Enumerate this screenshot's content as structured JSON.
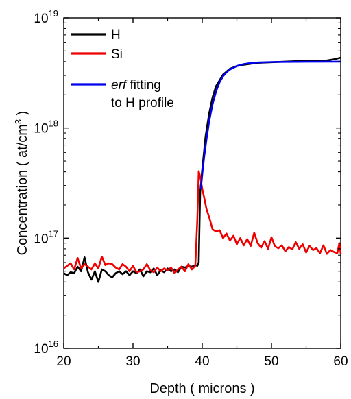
{
  "chart_data": {
    "type": "line",
    "xlabel": "Depth ( microns )",
    "ylabel": {
      "main": "Concentration ( at/cm",
      "sup": "3",
      "end": " )"
    },
    "xlim": [
      20,
      60
    ],
    "ylim": [
      1e+16,
      1e+19
    ],
    "yscale": "log",
    "x_ticks": [
      "20",
      "30",
      "40",
      "50",
      "60"
    ],
    "y_ticks": [
      {
        "base": "10",
        "exp": "16"
      },
      {
        "base": "10",
        "exp": "17"
      },
      {
        "base": "10",
        "exp": "18"
      },
      {
        "base": "10",
        "exp": "19"
      }
    ],
    "legend_position": "top-left",
    "grid": false,
    "legend_entries": [
      {
        "label": "H",
        "italic_prefix": "",
        "color": "#000000"
      },
      {
        "label": "Si",
        "italic_prefix": "",
        "color": "#ee0000"
      },
      {
        "label": " fitting",
        "italic_prefix": "erf",
        "line2": "to H profile",
        "color": "#0000ee"
      }
    ],
    "series": [
      {
        "name": "H",
        "color": "#000000",
        "x": [
          20,
          20.5,
          21,
          21.5,
          22,
          22.5,
          23,
          23.5,
          24,
          24.5,
          25,
          25.5,
          26,
          26.5,
          27,
          27.5,
          28,
          28.5,
          29,
          29.5,
          30,
          30.5,
          31,
          31.5,
          32,
          32.5,
          33,
          33.5,
          34,
          34.5,
          35,
          35.5,
          36,
          36.5,
          37,
          37.5,
          38,
          38.5,
          39,
          39.3,
          39.5,
          39.7,
          40,
          40.5,
          41,
          41.5,
          42,
          43,
          44,
          45,
          46,
          48,
          50,
          52,
          54,
          56,
          58,
          59,
          60
        ],
        "y": [
          4.8e+16,
          4.6e+16,
          4.9e+16,
          4.8e+16,
          5.5e+16,
          5e+16,
          6.7e+16,
          4.9e+16,
          4.2e+16,
          5e+16,
          4e+16,
          5.2e+16,
          5e+16,
          4.6e+16,
          4.4e+16,
          4.8e+16,
          5e+16,
          4.7e+16,
          5e+16,
          4.6e+16,
          5e+16,
          4.8e+16,
          5.2e+16,
          4.5e+16,
          5e+16,
          4.9e+16,
          5.3e+16,
          4.6e+16,
          5.1e+16,
          4.9e+16,
          5.3e+16,
          5e+16,
          5.2e+16,
          4.9e+16,
          5.5e+16,
          5.4e+16,
          5.6e+16,
          5.5e+16,
          5.7e+16,
          5.6e+16,
          6e+16,
          2.6e+17,
          4.2e+17,
          8.5e+17,
          1.35e+18,
          1.9e+18,
          2.4e+18,
          3.05e+18,
          3.45e+18,
          3.65e+18,
          3.75e+18,
          3.9e+18,
          3.95e+18,
          4e+18,
          4.05e+18,
          4.05e+18,
          4.1e+18,
          4.2e+18,
          4.35e+18
        ]
      },
      {
        "name": "Si",
        "color": "#ee0000",
        "x": [
          20,
          20.5,
          21,
          21.5,
          22,
          22.5,
          23,
          23.5,
          24,
          24.5,
          25,
          25.5,
          26,
          26.5,
          27,
          27.5,
          28,
          28.5,
          29,
          29.5,
          30,
          30.5,
          31,
          31.5,
          32,
          32.5,
          33,
          33.5,
          34,
          34.5,
          35,
          35.5,
          36,
          36.5,
          37,
          37.5,
          38,
          38.5,
          39,
          39.3,
          39.5,
          39.7,
          40,
          40.3,
          40.6,
          41,
          41.5,
          42,
          42.5,
          43,
          43.5,
          44,
          44.5,
          45,
          45.5,
          46,
          46.5,
          47,
          47.5,
          48,
          48.5,
          49,
          49.5,
          50,
          50.5,
          51,
          51.5,
          52,
          52.5,
          53,
          53.5,
          54,
          54.5,
          55,
          55.5,
          56,
          56.5,
          57,
          57.5,
          58,
          58.5,
          59,
          59.5,
          59.8,
          60
        ],
        "y": [
          5.3e+16,
          5.6e+16,
          5.9e+16,
          5.2e+16,
          6.6e+16,
          5.3e+16,
          5.8e+16,
          5.5e+16,
          5.2e+16,
          5.9e+16,
          5.3e+16,
          6.8e+16,
          5.7e+16,
          5.9e+16,
          5.8e+16,
          5.4e+16,
          5.2e+16,
          5.8e+16,
          5.5e+16,
          5e+16,
          5.6e+16,
          4.9e+16,
          5e+16,
          5.2e+16,
          5.8e+16,
          5.1e+16,
          4.9e+16,
          5.4e+16,
          5e+16,
          5.3e+16,
          5.1e+16,
          5.4e+16,
          4.8e+16,
          5.2e+16,
          5.5e+16,
          5e+16,
          5.8e+16,
          5.2e+16,
          5.6e+16,
          1.5e+17,
          4.05e+17,
          3.6e+17,
          2.8e+17,
          2.3e+17,
          1.85e+17,
          1.55e+17,
          1.2e+17,
          1.15e+17,
          1.18e+17,
          1e+17,
          1.1e+17,
          9.5e+16,
          1.05e+17,
          8.8e+16,
          1e+17,
          8.6e+16,
          9.8e+16,
          8.5e+16,
          1.12e+17,
          9e+16,
          8.2e+16,
          9.4e+16,
          8e+16,
          1.02e+17,
          8.4e+16,
          8.1e+16,
          8.6e+16,
          7.6e+16,
          8.3e+16,
          7.9e+16,
          9.2e+16,
          8e+16,
          8.8e+16,
          7.4e+16,
          8.5e+16,
          7.8e+16,
          8.1e+16,
          7.3e+16,
          8.6e+16,
          7.2e+16,
          7.8e+16,
          7.5e+16,
          7.3e+16,
          9e+16,
          7.2e+16
        ]
      },
      {
        "name": "erf fitting to H profile",
        "color": "#0000ee",
        "x": [
          39.8,
          40,
          40.3,
          40.6,
          41,
          41.5,
          42,
          42.5,
          43,
          43.5,
          44,
          45,
          46,
          47,
          48,
          50,
          52,
          55,
          60
        ],
        "y": [
          2.8e+17,
          3.8e+17,
          5.6e+17,
          7.8e+17,
          1.15e+18,
          1.65e+18,
          2.15e+18,
          2.6e+18,
          2.95e+18,
          3.2e+18,
          3.4e+18,
          3.65e+18,
          3.8e+18,
          3.88e+18,
          3.93e+18,
          3.97e+18,
          3.98e+18,
          3.99e+18,
          4e+18
        ]
      }
    ]
  }
}
